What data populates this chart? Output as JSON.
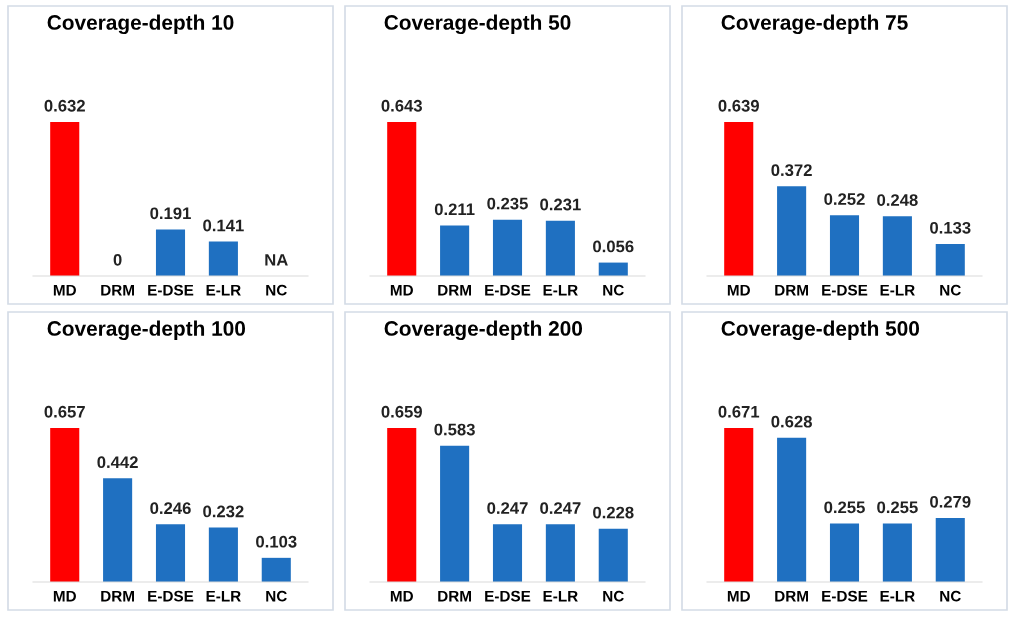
{
  "chart_data": [
    {
      "type": "bar",
      "title": "Coverage-depth 10",
      "categories": [
        "MD",
        "DRM",
        "E-DSE",
        "E-LR",
        "NC"
      ],
      "values": [
        0.632,
        0,
        0.191,
        0.141,
        null
      ],
      "value_labels": [
        "0.632",
        "0",
        "0.191",
        "0.141",
        "NA"
      ],
      "colors": [
        "#ff0000",
        "#1f70c1",
        "#1f70c1",
        "#1f70c1",
        "#1f70c1"
      ]
    },
    {
      "type": "bar",
      "title": "Coverage-depth 50",
      "categories": [
        "MD",
        "DRM",
        "E-DSE",
        "E-LR",
        "NC"
      ],
      "values": [
        0.643,
        0.211,
        0.235,
        0.231,
        0.056
      ],
      "value_labels": [
        "0.643",
        "0.211",
        "0.235",
        "0.231",
        "0.056"
      ],
      "colors": [
        "#ff0000",
        "#1f70c1",
        "#1f70c1",
        "#1f70c1",
        "#1f70c1"
      ]
    },
    {
      "type": "bar",
      "title": "Coverage-depth 75",
      "categories": [
        "MD",
        "DRM",
        "E-DSE",
        "E-LR",
        "NC"
      ],
      "values": [
        0.639,
        0.372,
        0.252,
        0.248,
        0.133
      ],
      "value_labels": [
        "0.639",
        "0.372",
        "0.252",
        "0.248",
        "0.133"
      ],
      "colors": [
        "#ff0000",
        "#1f70c1",
        "#1f70c1",
        "#1f70c1",
        "#1f70c1"
      ]
    },
    {
      "type": "bar",
      "title": "Coverage-depth 100",
      "categories": [
        "MD",
        "DRM",
        "E-DSE",
        "E-LR",
        "NC"
      ],
      "values": [
        0.657,
        0.442,
        0.246,
        0.232,
        0.103
      ],
      "value_labels": [
        "0.657",
        "0.442",
        "0.246",
        "0.232",
        "0.103"
      ],
      "colors": [
        "#ff0000",
        "#1f70c1",
        "#1f70c1",
        "#1f70c1",
        "#1f70c1"
      ]
    },
    {
      "type": "bar",
      "title": "Coverage-depth 200",
      "categories": [
        "MD",
        "DRM",
        "E-DSE",
        "E-LR",
        "NC"
      ],
      "values": [
        0.659,
        0.583,
        0.247,
        0.247,
        0.228
      ],
      "value_labels": [
        "0.659",
        "0.583",
        "0.247",
        "0.247",
        "0.228"
      ],
      "colors": [
        "#ff0000",
        "#1f70c1",
        "#1f70c1",
        "#1f70c1",
        "#1f70c1"
      ]
    },
    {
      "type": "bar",
      "title": "Coverage-depth 500",
      "categories": [
        "MD",
        "DRM",
        "E-DSE",
        "E-LR",
        "NC"
      ],
      "values": [
        0.671,
        0.628,
        0.255,
        0.255,
        0.279
      ],
      "value_labels": [
        "0.671",
        "0.628",
        "0.255",
        "0.255",
        "0.279"
      ],
      "colors": [
        "#ff0000",
        "#1f70c1",
        "#1f70c1",
        "#1f70c1",
        "#1f70c1"
      ]
    }
  ]
}
